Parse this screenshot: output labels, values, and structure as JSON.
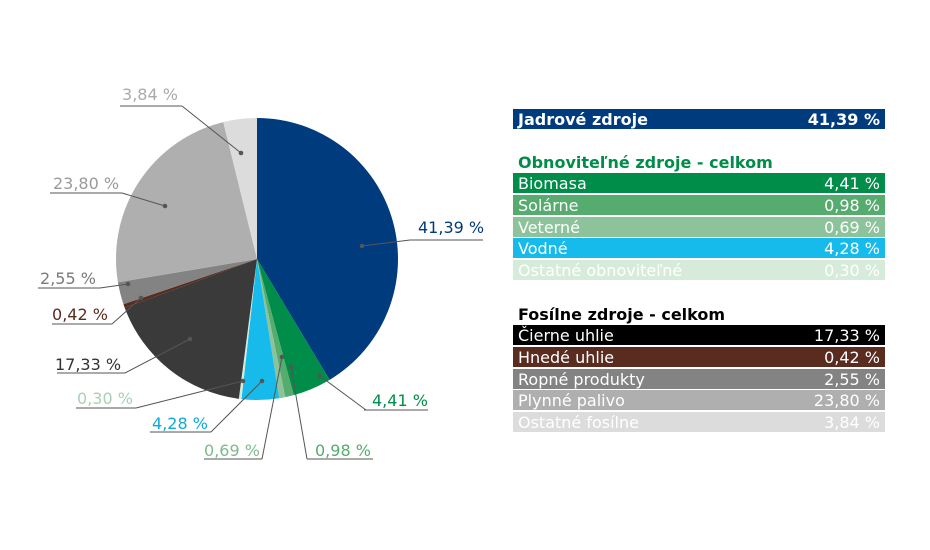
{
  "chart_data": {
    "type": "pie",
    "slices": [
      {
        "label": "Jadrové zdroje",
        "value": 41.39,
        "display": "41,39 %",
        "color": "#003b7e",
        "label_color": "#003b7e",
        "text_color": "#ffffff"
      },
      {
        "label": "Biomasa",
        "value": 4.41,
        "display": "4,41 %",
        "color": "#008d4a",
        "label_color": "#008d4a",
        "text_color": "#ffffff"
      },
      {
        "label": "Solárne",
        "value": 0.98,
        "display": "0,98 %",
        "color": "#56ab6f",
        "label_color": "#56ab6f",
        "text_color": "#ffffff"
      },
      {
        "label": "Veterné",
        "value": 0.69,
        "display": "0,69 %",
        "color": "#8cc39a",
        "label_color": "#7dbb8d",
        "text_color": "#ffffff"
      },
      {
        "label": "Vodné",
        "value": 4.28,
        "display": "4,28 %",
        "color": "#16bbec",
        "label_color": "#0fa9d8",
        "text_color": "#ffffff"
      },
      {
        "label": "Ostatné obnoviteľné",
        "value": 0.3,
        "display": "0,30 %",
        "color": "#d7ebdb",
        "label_color": "#a9d1b3",
        "text_color": "#ffffff"
      },
      {
        "label": "Čierne uhlie",
        "value": 17.33,
        "display": "17,33 %",
        "color": "#3a3a3a",
        "label_color": "#333333",
        "text_color": "#ffffff"
      },
      {
        "label": "Hnedé uhlie",
        "value": 0.42,
        "display": "0,42 %",
        "color": "#5a2b1f",
        "label_color": "#5a2b1f",
        "text_color": "#ffffff"
      },
      {
        "label": "Ropné produkty",
        "value": 2.55,
        "display": "2,55 %",
        "color": "#838383",
        "label_color": "#7a7a7a",
        "text_color": "#ffffff"
      },
      {
        "label": "Plynné palivo",
        "value": 23.8,
        "display": "23,80 %",
        "color": "#afafaf",
        "label_color": "#9a9a9a",
        "text_color": "#ffffff"
      },
      {
        "label": "Ostatné fosílne",
        "value": 3.84,
        "display": "3,84 %",
        "color": "#dcdcdc",
        "label_color": "#aaaaaa",
        "text_color": "#ffffff"
      }
    ],
    "legend": {
      "nuclear_index": 0,
      "renewable_title": "Obnoviteľné zdroje - celkom",
      "renewable_title_color": "#008d4a",
      "renewable_indices": [
        1,
        2,
        3,
        4,
        5
      ],
      "fossil_title": "Fosílne zdroje - celkom",
      "fossil_title_color": "#000000",
      "fossil_indices": [
        6,
        7,
        8,
        9,
        10
      ]
    },
    "legend_row_colors": [
      "#003b7e",
      "#008d4a",
      "#56ab6f",
      "#8cc39a",
      "#16bbec",
      "#d7ebdb",
      "#000000",
      "#5a2b1f",
      "#838383",
      "#afafaf",
      "#dcdcdc"
    ]
  }
}
